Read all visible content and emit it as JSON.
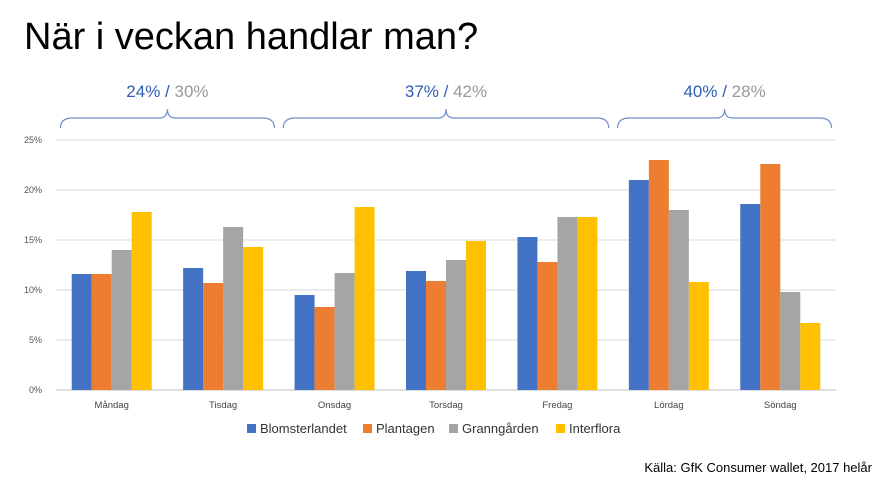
{
  "title": "När i veckan handlar man?",
  "source": "Källa: GfK Consumer wallet, 2017 helår",
  "colors": {
    "blue_text": "#2E5DB5",
    "gray_text": "#999999",
    "bracket": "#6F8FC7",
    "grid": "#D9D9D9",
    "axis": "#BFBFBF"
  },
  "groups": [
    {
      "first": "24%",
      "sep": " /",
      "second": " 30%",
      "from": 0,
      "to": 1
    },
    {
      "first": "37%",
      "sep": " /",
      "second": " 42%",
      "from": 2,
      "to": 4
    },
    {
      "first": "40%",
      "sep": " /",
      "second": " 28%",
      "from": 5,
      "to": 6
    }
  ],
  "chart_data": {
    "type": "bar",
    "categories": [
      "Måndag",
      "Tisdag",
      "Onsdag",
      "Torsdag",
      "Fredag",
      "Lördag",
      "Söndag"
    ],
    "series": [
      {
        "name": "Blomsterlandet",
        "color": "#4472C4",
        "values": [
          11.6,
          12.2,
          9.5,
          11.9,
          15.3,
          21.0,
          18.6
        ]
      },
      {
        "name": "Plantagen",
        "color": "#ED7D31",
        "values": [
          11.6,
          10.7,
          8.3,
          10.9,
          12.8,
          23.0,
          22.6
        ]
      },
      {
        "name": "Granngården",
        "color": "#A5A5A5",
        "values": [
          14.0,
          16.3,
          11.7,
          13.0,
          17.3,
          18.0,
          9.8
        ]
      },
      {
        "name": "Interflora",
        "color": "#FFC000",
        "values": [
          17.8,
          14.3,
          18.3,
          14.9,
          17.3,
          10.8,
          6.7
        ]
      }
    ],
    "yticks": [
      "0%",
      "5%",
      "10%",
      "15%",
      "20%",
      "25%"
    ],
    "ylim": [
      0,
      25
    ],
    "grid": true,
    "legend": "bottom"
  }
}
